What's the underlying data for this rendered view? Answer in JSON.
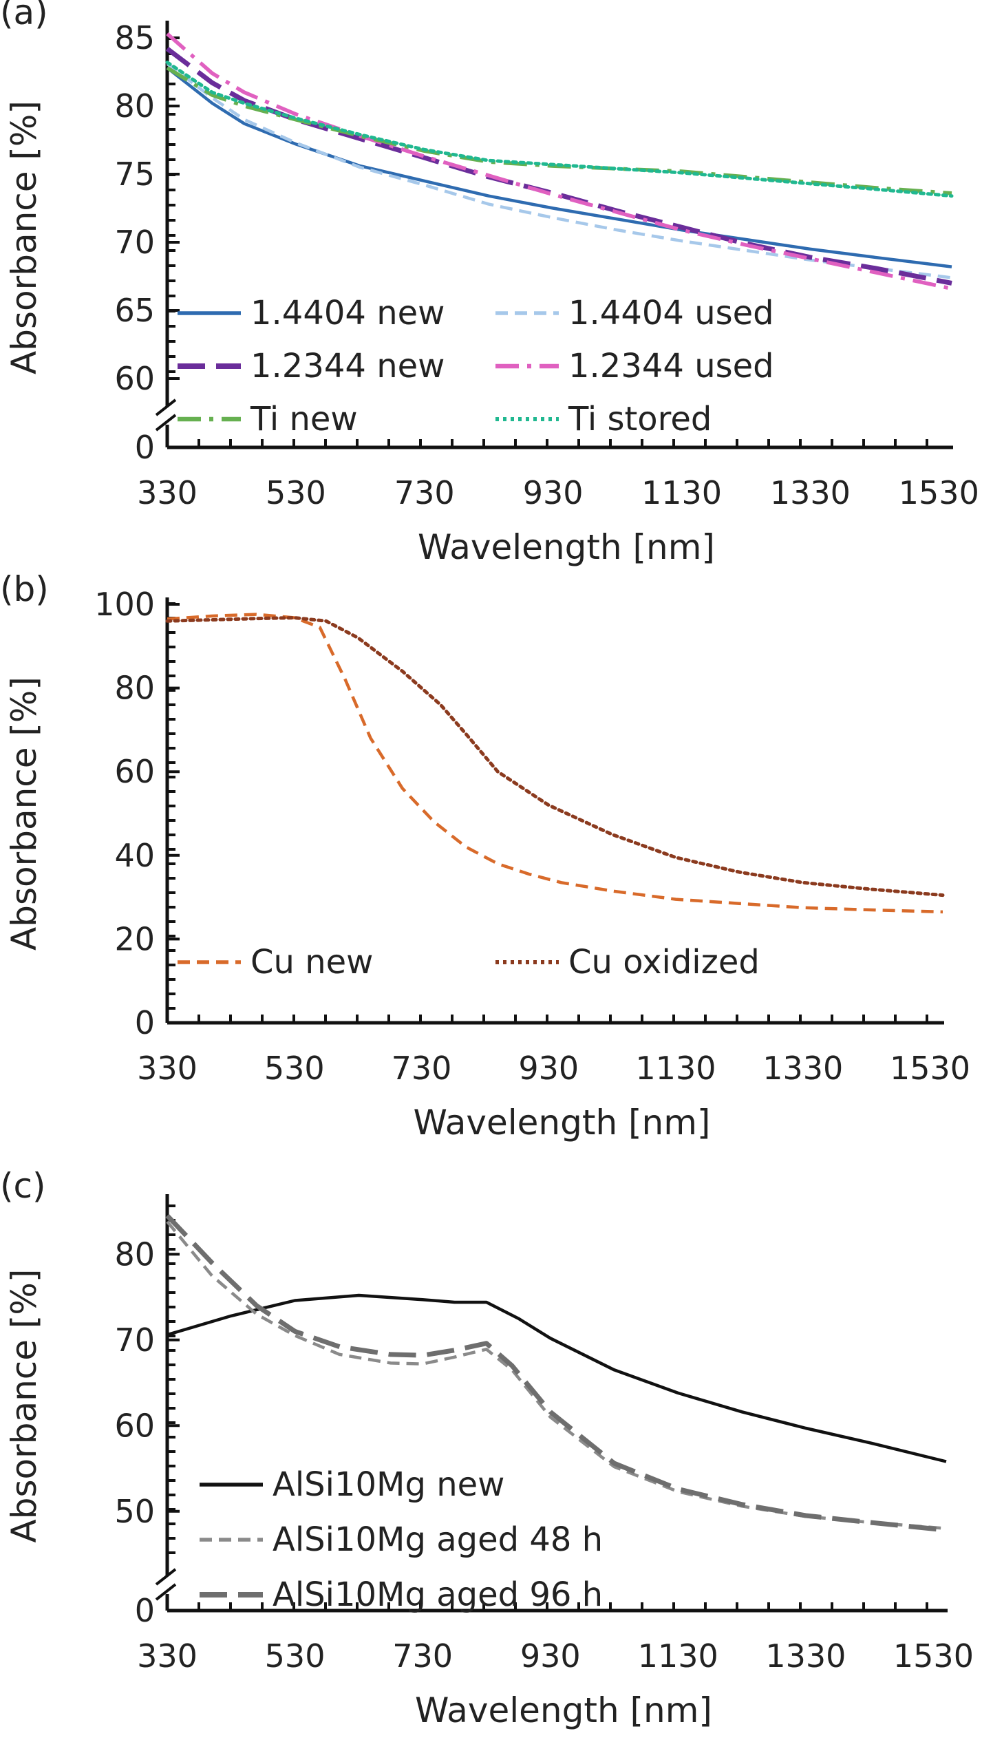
{
  "chart_data": [
    {
      "panel": "(a)",
      "type": "line",
      "xlabel": "Wavelength [nm]",
      "ylabel": "Absorbance [%]",
      "xlim": [
        330,
        1550
      ],
      "ylim": [
        60,
        85
      ],
      "x_ticks": [
        "330",
        "530",
        "730",
        "930",
        "1130",
        "1330",
        "1530"
      ],
      "y_ticks": [
        "60",
        "65",
        "70",
        "75",
        "80",
        "85"
      ],
      "axis_break_label": "0",
      "legend": "bottom-left, two columns",
      "grid": false,
      "series": [
        {
          "name": "1.4404 new",
          "color": "#2e6bb0",
          "dash": "solid",
          "x": [
            330,
            400,
            450,
            530,
            630,
            730,
            830,
            930,
            1030,
            1130,
            1230,
            1330,
            1430,
            1550
          ],
          "y": [
            82.8,
            80.2,
            78.7,
            77.2,
            75.6,
            74.5,
            73.4,
            72.5,
            71.7,
            70.9,
            70.2,
            69.5,
            68.9,
            68.2
          ]
        },
        {
          "name": "1.4404 used",
          "color": "#a6c8ea",
          "dash": "dashed",
          "x": [
            330,
            400,
            450,
            530,
            630,
            730,
            830,
            930,
            1030,
            1130,
            1230,
            1330,
            1430,
            1550
          ],
          "y": [
            83.1,
            80.6,
            79.0,
            77.3,
            75.5,
            74.2,
            72.8,
            71.8,
            70.9,
            70.1,
            69.4,
            68.7,
            68.1,
            67.4
          ]
        },
        {
          "name": "1.2344 new",
          "color": "#6a2d9a",
          "dash": "longdash",
          "x": [
            330,
            400,
            450,
            530,
            630,
            730,
            830,
            930,
            1030,
            1130,
            1230,
            1330,
            1430,
            1550
          ],
          "y": [
            84.2,
            81.7,
            80.4,
            79.0,
            77.6,
            76.2,
            74.8,
            73.6,
            72.3,
            71.1,
            69.9,
            68.9,
            68.1,
            67.0
          ]
        },
        {
          "name": "1.2344 used",
          "color": "#e060c0",
          "dash": "dashdot",
          "x": [
            330,
            400,
            450,
            530,
            630,
            730,
            830,
            930,
            1030,
            1130,
            1230,
            1330,
            1430,
            1550
          ],
          "y": [
            85.3,
            82.4,
            81.0,
            79.4,
            77.8,
            76.3,
            74.9,
            73.5,
            72.2,
            70.9,
            69.8,
            68.8,
            67.8,
            66.6
          ]
        },
        {
          "name": "Ti new",
          "color": "#66b050",
          "dash": "dashdot",
          "x": [
            330,
            400,
            450,
            530,
            630,
            730,
            830,
            930,
            1030,
            1130,
            1230,
            1330,
            1430,
            1550
          ],
          "y": [
            82.8,
            80.8,
            80.0,
            79.0,
            77.8,
            76.7,
            75.9,
            75.6,
            75.4,
            75.2,
            74.8,
            74.4,
            74.0,
            73.6
          ]
        },
        {
          "name": "Ti stored",
          "color": "#20b890",
          "dash": "dotted",
          "x": [
            330,
            400,
            450,
            530,
            630,
            730,
            830,
            930,
            1030,
            1130,
            1230,
            1330,
            1430,
            1550
          ],
          "y": [
            83.2,
            81.0,
            80.2,
            79.1,
            77.9,
            76.8,
            76.0,
            75.7,
            75.4,
            75.1,
            74.7,
            74.3,
            73.9,
            73.4
          ]
        }
      ]
    },
    {
      "panel": "(b)",
      "type": "line",
      "xlabel": "Wavelength [nm]",
      "ylabel": "Absorbance [%]",
      "xlim": [
        330,
        1550
      ],
      "ylim": [
        0,
        100
      ],
      "x_ticks": [
        "330",
        "530",
        "730",
        "930",
        "1130",
        "1330",
        "1530"
      ],
      "y_ticks": [
        "0",
        "20",
        "40",
        "60",
        "80",
        "100"
      ],
      "legend": "bottom, two columns",
      "grid": false,
      "series": [
        {
          "name": "Cu new",
          "color": "#d86a2a",
          "dash": "dashed",
          "x": [
            330,
            400,
            470,
            530,
            570,
            610,
            650,
            700,
            750,
            800,
            850,
            900,
            950,
            1030,
            1130,
            1230,
            1330,
            1430,
            1550
          ],
          "y": [
            96.5,
            97.2,
            97.6,
            96.8,
            94.5,
            82,
            68,
            56,
            48,
            42,
            38,
            35.5,
            33.5,
            31.5,
            29.5,
            28.5,
            27.5,
            27.0,
            26.5
          ]
        },
        {
          "name": "Cu oxidized",
          "color": "#8b3a1e",
          "dash": "dotted",
          "x": [
            330,
            400,
            470,
            530,
            580,
            630,
            700,
            760,
            800,
            850,
            930,
            1030,
            1130,
            1230,
            1330,
            1430,
            1550
          ],
          "y": [
            96.0,
            96.3,
            96.6,
            96.8,
            96.0,
            92,
            84,
            76,
            69,
            60,
            52,
            45,
            39.5,
            36,
            33.5,
            32,
            30.5
          ]
        }
      ]
    },
    {
      "panel": "(c)",
      "type": "line",
      "xlabel": "Wavelength [nm]",
      "ylabel": "Absorbance [%]",
      "xlim": [
        330,
        1550
      ],
      "ylim": [
        45,
        85
      ],
      "x_ticks": [
        "330",
        "530",
        "730",
        "930",
        "1130",
        "1330",
        "1530"
      ],
      "y_ticks": [
        "50",
        "60",
        "70",
        "80"
      ],
      "axis_break_label": "0",
      "legend": "bottom-left, one column",
      "grid": false,
      "series": [
        {
          "name": "AlSi10Mg new",
          "color": "#111111",
          "dash": "solid",
          "x": [
            330,
            430,
            530,
            630,
            730,
            780,
            830,
            880,
            930,
            1030,
            1130,
            1230,
            1330,
            1430,
            1550
          ],
          "y": [
            70.6,
            72.8,
            74.6,
            75.2,
            74.7,
            74.4,
            74.4,
            72.5,
            70.2,
            66.5,
            63.8,
            61.6,
            59.7,
            58.0,
            55.8
          ]
        },
        {
          "name": "AlSi10Mg aged 48 h",
          "color": "#8a8a8a",
          "dash": "dashed",
          "x": [
            330,
            400,
            470,
            530,
            600,
            680,
            730,
            780,
            830,
            870,
            930,
            1030,
            1130,
            1230,
            1330,
            1430,
            1550
          ],
          "y": [
            83.8,
            77.5,
            73.0,
            70.5,
            68.3,
            67.3,
            67.2,
            68.0,
            68.9,
            66.5,
            61.0,
            55.2,
            52.3,
            50.6,
            49.4,
            48.7,
            48.0
          ]
        },
        {
          "name": "AlSi10Mg aged 96 h",
          "color": "#6e6e6e",
          "dash": "longdash",
          "x": [
            330,
            400,
            470,
            530,
            600,
            680,
            730,
            780,
            830,
            870,
            930,
            1030,
            1130,
            1230,
            1330,
            1430,
            1550
          ],
          "y": [
            84.5,
            79.0,
            74.0,
            71.0,
            69.2,
            68.3,
            68.2,
            68.8,
            69.6,
            67.0,
            61.6,
            55.6,
            52.6,
            50.8,
            49.5,
            48.7,
            47.8
          ]
        }
      ]
    }
  ]
}
